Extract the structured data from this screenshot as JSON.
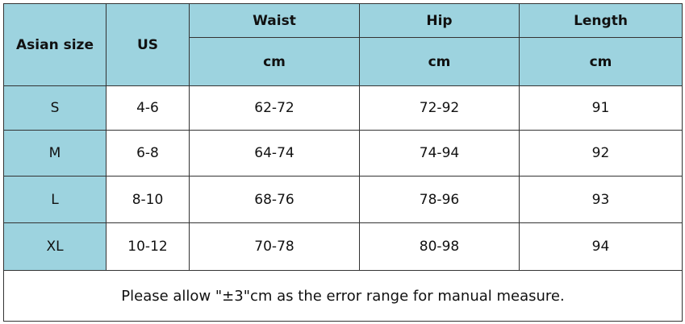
{
  "header": {
    "columns": [
      "Asian size",
      "US",
      "Waist",
      "Hip",
      "Length"
    ],
    "units": [
      "cm",
      "cm",
      "cm"
    ]
  },
  "table": {
    "rows": [
      [
        "S",
        "4-6",
        "62-72",
        "72-92",
        "91"
      ],
      [
        "M",
        "6-8",
        "64-74",
        "74-94",
        "92"
      ],
      [
        "L",
        "8-10",
        "68-76",
        "78-96",
        "93"
      ],
      [
        "XL",
        "10-12",
        "70-78",
        "80-98",
        "94"
      ]
    ]
  },
  "note": "Please allow \"±3\"cm as the error range for manual measure."
}
